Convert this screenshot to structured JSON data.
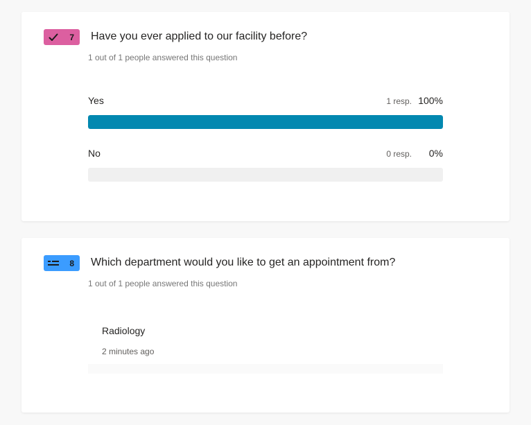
{
  "colors": {
    "choice_badge": "#dc5fa0",
    "text_badge": "#3b9cff",
    "bar_fill": "#0288b0",
    "bar_track": "#f0f0f0"
  },
  "questions": [
    {
      "number": "7",
      "icon": "checkmark-icon",
      "title": "Have you ever applied to our facility before?",
      "answered": "1 out of 1 people answered this question",
      "options": [
        {
          "label": "Yes",
          "responses": "1 resp.",
          "percent": "100%",
          "fraction": 1.0
        },
        {
          "label": "No",
          "responses": "0 resp.",
          "percent": "0%",
          "fraction": 0.0
        }
      ]
    },
    {
      "number": "8",
      "icon": "text-lines-icon",
      "title": "Which department would you like to get an appointment from?",
      "answered": "1 out of 1 people answered this question",
      "responses": [
        {
          "text": "Radiology",
          "time": "2 minutes ago"
        }
      ]
    }
  ]
}
